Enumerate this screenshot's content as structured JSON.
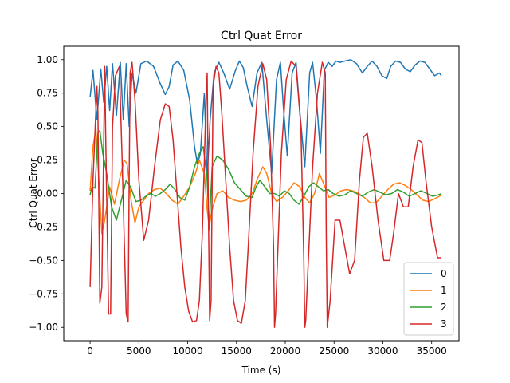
{
  "chart_data": {
    "type": "line",
    "title": "Ctrl Quat Error",
    "xlabel": "Time (s)",
    "ylabel": "Ctrl Quat Error",
    "xlim": [
      -2700,
      37800
    ],
    "ylim": [
      -1.1,
      1.1
    ],
    "xticks": [
      0,
      5000,
      10000,
      15000,
      20000,
      25000,
      30000,
      35000
    ],
    "xtick_labels": [
      "0",
      "5000",
      "10000",
      "15000",
      "20000",
      "25000",
      "30000",
      "35000"
    ],
    "yticks": [
      -1.0,
      -0.75,
      -0.5,
      -0.25,
      0.0,
      0.25,
      0.5,
      0.75,
      1.0
    ],
    "ytick_labels": [
      "−1.00",
      "−0.75",
      "−0.50",
      "−0.25",
      "0.00",
      "0.25",
      "0.50",
      "0.75",
      "1.00"
    ],
    "grid": false,
    "legend_position": "lower-right",
    "series": [
      {
        "name": "0",
        "color": "#1f77b4",
        "x": [
          0,
          300,
          700,
          1100,
          1400,
          1700,
          2000,
          2300,
          2700,
          3100,
          3400,
          3700,
          4000,
          4300,
          4700,
          5200,
          5800,
          6500,
          7200,
          7700,
          8100,
          8500,
          9000,
          9600,
          10200,
          10700,
          11000,
          11300,
          11700,
          12000,
          12300,
          12700,
          13200,
          13700,
          14300,
          14900,
          15300,
          15700,
          16100,
          16600,
          17100,
          17600,
          18100,
          18600,
          19100,
          19500,
          19800,
          20200,
          20700,
          21100,
          21500,
          22000,
          22500,
          22800,
          23200,
          23600,
          24000,
          24400,
          24800,
          25200,
          25600,
          26100,
          26700,
          27300,
          27900,
          28400,
          28900,
          29400,
          29900,
          30400,
          30800,
          31300,
          31800,
          32300,
          32800,
          33300,
          33800,
          34300,
          34800,
          35300,
          35800,
          36000
        ],
        "y": [
          0.72,
          0.92,
          0.55,
          0.93,
          0.68,
          0.95,
          0.62,
          0.97,
          0.58,
          0.98,
          0.55,
          0.97,
          0.5,
          0.9,
          0.75,
          0.97,
          0.99,
          0.95,
          0.82,
          0.74,
          0.8,
          0.96,
          0.99,
          0.92,
          0.7,
          0.35,
          0.22,
          0.3,
          0.75,
          0.12,
          0.55,
          0.9,
          0.98,
          0.9,
          0.78,
          0.92,
          0.99,
          0.94,
          0.8,
          0.65,
          0.9,
          0.98,
          0.55,
          0.15,
          0.85,
          0.98,
          0.65,
          0.28,
          0.9,
          0.98,
          0.6,
          0.2,
          0.9,
          0.98,
          0.7,
          0.3,
          0.92,
          0.98,
          0.95,
          0.99,
          0.98,
          0.99,
          1.0,
          0.97,
          0.9,
          0.95,
          0.99,
          0.95,
          0.88,
          0.86,
          0.95,
          0.99,
          0.98,
          0.93,
          0.91,
          0.96,
          0.99,
          0.98,
          0.93,
          0.88,
          0.9,
          0.88
        ]
      },
      {
        "name": "1",
        "color": "#ff7f0e",
        "x": [
          0,
          300,
          600,
          900,
          1200,
          1500,
          2000,
          2500,
          3000,
          3500,
          3800,
          4200,
          4600,
          5000,
          5500,
          6000,
          6600,
          7200,
          7800,
          8400,
          9000,
          9600,
          10200,
          10800,
          11200,
          11700,
          12000,
          12200,
          12500,
          13000,
          13600,
          14200,
          14800,
          15400,
          16000,
          16600,
          17200,
          17700,
          18100,
          18600,
          19100,
          19700,
          20300,
          20900,
          21500,
          22000,
          22500,
          23000,
          23500,
          24000,
          24500,
          25100,
          25700,
          26300,
          26900,
          27500,
          28100,
          28700,
          29300,
          29900,
          30500,
          31100,
          31700,
          32300,
          32900,
          33500,
          34100,
          34700,
          35300,
          35800,
          36000
        ],
        "y": [
          0.02,
          0.35,
          0.48,
          0.1,
          -0.3,
          -0.2,
          0.05,
          -0.08,
          0.1,
          0.25,
          0.22,
          -0.05,
          -0.22,
          -0.1,
          -0.05,
          0.0,
          0.03,
          0.04,
          0.0,
          -0.05,
          -0.08,
          -0.02,
          0.05,
          0.15,
          0.25,
          0.15,
          -0.12,
          -0.25,
          -0.12,
          0.0,
          0.02,
          -0.03,
          -0.05,
          -0.06,
          -0.05,
          0.0,
          0.12,
          0.2,
          0.15,
          0.0,
          -0.06,
          -0.03,
          0.02,
          0.08,
          0.05,
          -0.03,
          -0.07,
          0.0,
          0.15,
          0.06,
          -0.03,
          -0.01,
          0.02,
          0.03,
          0.02,
          0.0,
          -0.03,
          -0.07,
          -0.07,
          -0.02,
          0.03,
          0.07,
          0.08,
          0.06,
          0.03,
          -0.01,
          -0.05,
          -0.06,
          -0.04,
          -0.02,
          -0.01
        ]
      },
      {
        "name": "2",
        "color": "#2ca02c",
        "x": [
          0,
          200,
          500,
          800,
          1000,
          1300,
          1700,
          2200,
          2700,
          3200,
          3700,
          4200,
          4700,
          5200,
          5700,
          6200,
          6700,
          7200,
          7700,
          8200,
          8700,
          9200,
          9700,
          10200,
          10700,
          11200,
          11600,
          12000,
          12200,
          12500,
          13000,
          13600,
          14200,
          14800,
          15400,
          16000,
          16600,
          17000,
          17400,
          17900,
          18400,
          18900,
          19400,
          19900,
          20400,
          20900,
          21400,
          21900,
          22400,
          22900,
          23400,
          23900,
          24400,
          24900,
          25500,
          26100,
          26700,
          27300,
          27900,
          28500,
          29100,
          29700,
          30300,
          30900,
          31500,
          32100,
          32700,
          33300,
          33900,
          34500,
          35100,
          35700,
          36000
        ],
        "y": [
          -0.01,
          0.05,
          0.04,
          0.45,
          0.47,
          0.3,
          0.15,
          -0.1,
          -0.2,
          -0.05,
          0.1,
          0.04,
          -0.06,
          -0.05,
          -0.02,
          0.0,
          -0.02,
          0.0,
          0.03,
          0.07,
          0.03,
          -0.03,
          -0.05,
          0.05,
          0.2,
          0.3,
          0.35,
          0.1,
          -0.27,
          0.2,
          0.28,
          0.25,
          0.18,
          0.08,
          0.03,
          -0.02,
          -0.03,
          0.05,
          0.1,
          0.05,
          0.0,
          0.0,
          -0.02,
          0.02,
          0.0,
          -0.05,
          -0.08,
          -0.02,
          0.05,
          0.08,
          0.05,
          0.02,
          0.03,
          0.0,
          -0.02,
          -0.01,
          0.02,
          0.0,
          -0.02,
          0.01,
          0.03,
          0.01,
          -0.01,
          0.0,
          0.03,
          0.01,
          -0.02,
          0.0,
          0.02,
          0.0,
          -0.02,
          -0.01,
          0.0
        ]
      },
      {
        "name": "3",
        "color": "#d62728",
        "x": [
          0,
          300,
          700,
          800,
          1000,
          1200,
          1500,
          1600,
          1900,
          2100,
          2300,
          2600,
          3000,
          3300,
          3700,
          3900,
          4000,
          4100,
          4300,
          4600,
          5000,
          5500,
          6000,
          6600,
          7200,
          7700,
          8100,
          8500,
          8900,
          9300,
          9700,
          10100,
          10500,
          10900,
          11200,
          11500,
          11900,
          12000,
          12100,
          12250,
          12400,
          12600,
          12900,
          13200,
          13500,
          13900,
          14300,
          14700,
          15100,
          15500,
          15900,
          16200,
          16700,
          17200,
          17700,
          18100,
          18500,
          18800,
          18900,
          19000,
          19200,
          19600,
          20100,
          20600,
          21100,
          21600,
          21900,
          22000,
          22100,
          22300,
          22800,
          23300,
          23800,
          24100,
          24200,
          24300,
          24600,
          25100,
          25600,
          26100,
          26600,
          27100,
          27600,
          28000,
          28400,
          28900,
          29500,
          30100,
          30700,
          31100,
          31600,
          32100,
          32600,
          33100,
          33600,
          34000,
          34400,
          35000,
          35600,
          36000
        ],
        "y": [
          -0.7,
          0.1,
          0.8,
          0.6,
          -0.82,
          -0.7,
          0.95,
          0.4,
          -0.9,
          -0.9,
          0.5,
          0.88,
          0.95,
          0.2,
          -0.9,
          -0.96,
          0.1,
          0.9,
          0.98,
          0.7,
          0.1,
          -0.35,
          -0.2,
          0.2,
          0.55,
          0.67,
          0.65,
          0.4,
          0.0,
          -0.4,
          -0.7,
          -0.88,
          -0.96,
          -0.95,
          -0.8,
          -0.3,
          0.75,
          0.9,
          0.0,
          -0.95,
          -0.8,
          0.8,
          0.95,
          0.9,
          0.6,
          0.1,
          -0.4,
          -0.8,
          -0.95,
          -0.97,
          -0.8,
          -0.4,
          0.3,
          0.8,
          0.97,
          0.85,
          0.35,
          -0.4,
          -1.0,
          -0.9,
          -0.5,
          0.3,
          0.85,
          0.99,
          0.95,
          0.5,
          -0.5,
          -1.0,
          -0.95,
          -0.6,
          0.2,
          0.75,
          0.98,
          0.9,
          -0.3,
          -1.0,
          -0.8,
          -0.2,
          -0.2,
          -0.4,
          -0.6,
          -0.5,
          0.1,
          0.42,
          0.45,
          0.2,
          -0.2,
          -0.5,
          -0.5,
          -0.3,
          0.0,
          -0.1,
          -0.1,
          0.2,
          0.4,
          0.38,
          0.1,
          -0.25,
          -0.48,
          -0.48
        ]
      }
    ]
  }
}
